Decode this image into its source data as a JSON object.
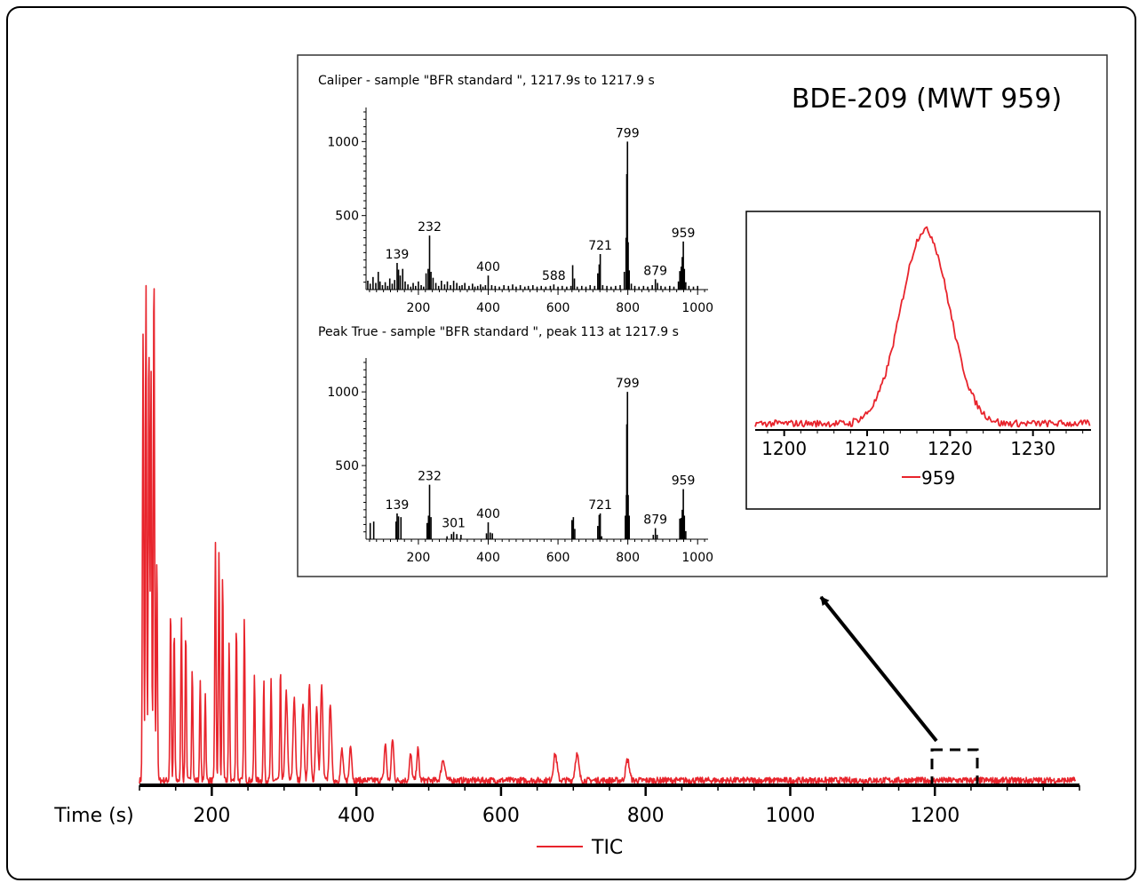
{
  "chart_data": [
    {
      "type": "line",
      "name": "main-tic-chromatogram",
      "xlabel": "Time (s)",
      "x_ticks": [
        200,
        400,
        600,
        800,
        1000,
        1200
      ],
      "xlim": [
        100,
        1400
      ],
      "legend": {
        "entries": [
          "TIC"
        ],
        "placement": "bottom-center"
      },
      "series": [
        {
          "name": "TIC",
          "color": "#e8242c",
          "peaks": [
            {
              "x": 105,
              "y": 0.86
            },
            {
              "x": 109,
              "y": 0.96
            },
            {
              "x": 113,
              "y": 0.86
            },
            {
              "x": 116,
              "y": 0.79
            },
            {
              "x": 120,
              "y": 1.0
            },
            {
              "x": 124,
              "y": 0.43
            },
            {
              "x": 143,
              "y": 0.33
            },
            {
              "x": 148,
              "y": 0.29
            },
            {
              "x": 158,
              "y": 0.31
            },
            {
              "x": 164,
              "y": 0.29
            },
            {
              "x": 173,
              "y": 0.22
            },
            {
              "x": 184,
              "y": 0.19
            },
            {
              "x": 191,
              "y": 0.17
            },
            {
              "x": 205,
              "y": 0.46
            },
            {
              "x": 210,
              "y": 0.44
            },
            {
              "x": 215,
              "y": 0.4
            },
            {
              "x": 224,
              "y": 0.26
            },
            {
              "x": 234,
              "y": 0.3
            },
            {
              "x": 245,
              "y": 0.31
            },
            {
              "x": 259,
              "y": 0.2
            },
            {
              "x": 272,
              "y": 0.19
            },
            {
              "x": 282,
              "y": 0.19
            },
            {
              "x": 295,
              "y": 0.21
            },
            {
              "x": 303,
              "y": 0.17
            },
            {
              "x": 314,
              "y": 0.16
            },
            {
              "x": 326,
              "y": 0.15
            },
            {
              "x": 335,
              "y": 0.18
            },
            {
              "x": 345,
              "y": 0.14
            },
            {
              "x": 352,
              "y": 0.18
            },
            {
              "x": 364,
              "y": 0.15
            },
            {
              "x": 380,
              "y": 0.06
            },
            {
              "x": 392,
              "y": 0.07
            },
            {
              "x": 440,
              "y": 0.07
            },
            {
              "x": 450,
              "y": 0.08
            },
            {
              "x": 475,
              "y": 0.05
            },
            {
              "x": 485,
              "y": 0.06
            },
            {
              "x": 520,
              "y": 0.04
            },
            {
              "x": 675,
              "y": 0.05
            },
            {
              "x": 705,
              "y": 0.05
            },
            {
              "x": 775,
              "y": 0.04
            }
          ]
        }
      ]
    },
    {
      "type": "bar",
      "name": "caliper-spectrum",
      "title": "Caliper - sample \"BFR standard \", 1217.9s to 1217.9 s",
      "xlim": [
        50,
        1030
      ],
      "ylim": [
        0,
        1230
      ],
      "x_ticks": [
        200,
        400,
        600,
        800,
        1000
      ],
      "y_ticks": [
        500,
        1000
      ],
      "peak_labels": [
        139,
        232,
        400,
        588,
        721,
        799,
        879,
        959
      ],
      "bars": [
        [
          55,
          60
        ],
        [
          62,
          40
        ],
        [
          70,
          85
        ],
        [
          78,
          45
        ],
        [
          85,
          120
        ],
        [
          90,
          55
        ],
        [
          97,
          30
        ],
        [
          105,
          50
        ],
        [
          112,
          25
        ],
        [
          118,
          75
        ],
        [
          125,
          40
        ],
        [
          132,
          65
        ],
        [
          139,
          180
        ],
        [
          143,
          135
        ],
        [
          148,
          95
        ],
        [
          155,
          140
        ],
        [
          162,
          55
        ],
        [
          170,
          35
        ],
        [
          178,
          20
        ],
        [
          185,
          45
        ],
        [
          192,
          25
        ],
        [
          200,
          55
        ],
        [
          208,
          30
        ],
        [
          215,
          20
        ],
        [
          222,
          110
        ],
        [
          228,
          140
        ],
        [
          232,
          365
        ],
        [
          236,
          120
        ],
        [
          242,
          80
        ],
        [
          250,
          45
        ],
        [
          258,
          25
        ],
        [
          266,
          60
        ],
        [
          275,
          35
        ],
        [
          283,
          55
        ],
        [
          292,
          30
        ],
        [
          301,
          60
        ],
        [
          310,
          45
        ],
        [
          318,
          25
        ],
        [
          325,
          30
        ],
        [
          333,
          45
        ],
        [
          345,
          25
        ],
        [
          355,
          40
        ],
        [
          362,
          20
        ],
        [
          370,
          25
        ],
        [
          378,
          35
        ],
        [
          385,
          20
        ],
        [
          392,
          30
        ],
        [
          400,
          95
        ],
        [
          410,
          30
        ],
        [
          420,
          25
        ],
        [
          432,
          20
        ],
        [
          445,
          30
        ],
        [
          458,
          25
        ],
        [
          470,
          35
        ],
        [
          480,
          20
        ],
        [
          492,
          30
        ],
        [
          505,
          20
        ],
        [
          515,
          25
        ],
        [
          528,
          30
        ],
        [
          540,
          20
        ],
        [
          552,
          25
        ],
        [
          565,
          20
        ],
        [
          578,
          25
        ],
        [
          588,
          35
        ],
        [
          600,
          20
        ],
        [
          612,
          25
        ],
        [
          625,
          20
        ],
        [
          637,
          25
        ],
        [
          642,
          165
        ],
        [
          647,
          75
        ],
        [
          655,
          20
        ],
        [
          668,
          25
        ],
        [
          680,
          20
        ],
        [
          692,
          30
        ],
        [
          705,
          25
        ],
        [
          714,
          110
        ],
        [
          718,
          170
        ],
        [
          721,
          240
        ],
        [
          728,
          30
        ],
        [
          740,
          25
        ],
        [
          752,
          20
        ],
        [
          765,
          25
        ],
        [
          778,
          30
        ],
        [
          790,
          120
        ],
        [
          795,
          350
        ],
        [
          797,
          780
        ],
        [
          799,
          1000
        ],
        [
          801,
          320
        ],
        [
          804,
          130
        ],
        [
          810,
          40
        ],
        [
          820,
          25
        ],
        [
          832,
          20
        ],
        [
          845,
          25
        ],
        [
          857,
          20
        ],
        [
          870,
          30
        ],
        [
          879,
          70
        ],
        [
          885,
          45
        ],
        [
          895,
          25
        ],
        [
          907,
          20
        ],
        [
          920,
          25
        ],
        [
          932,
          20
        ],
        [
          945,
          55
        ],
        [
          949,
          125
        ],
        [
          953,
          155
        ],
        [
          956,
          220
        ],
        [
          959,
          325
        ],
        [
          962,
          140
        ],
        [
          966,
          50
        ],
        [
          975,
          25
        ],
        [
          988,
          20
        ],
        [
          1000,
          25
        ]
      ]
    },
    {
      "type": "bar",
      "name": "peak-true-spectrum",
      "title": "Peak True - sample \"BFR standard \", peak 113 at 1217.9 s",
      "xlim": [
        50,
        1030
      ],
      "ylim": [
        0,
        1230
      ],
      "x_ticks": [
        200,
        400,
        600,
        800,
        1000
      ],
      "y_ticks": [
        500,
        1000
      ],
      "peak_labels": [
        139,
        232,
        301,
        400,
        721,
        799,
        879,
        959
      ],
      "bars": [
        [
          62,
          110
        ],
        [
          72,
          120
        ],
        [
          136,
          120
        ],
        [
          139,
          175
        ],
        [
          143,
          155
        ],
        [
          150,
          150
        ],
        [
          225,
          110
        ],
        [
          229,
          160
        ],
        [
          232,
          370
        ],
        [
          236,
          150
        ],
        [
          282,
          20
        ],
        [
          295,
          35
        ],
        [
          301,
          50
        ],
        [
          310,
          35
        ],
        [
          322,
          30
        ],
        [
          395,
          40
        ],
        [
          400,
          115
        ],
        [
          406,
          45
        ],
        [
          412,
          40
        ],
        [
          640,
          130
        ],
        [
          644,
          150
        ],
        [
          648,
          70
        ],
        [
          714,
          90
        ],
        [
          718,
          165
        ],
        [
          721,
          175
        ],
        [
          725,
          20
        ],
        [
          793,
          160
        ],
        [
          796,
          300
        ],
        [
          797,
          780
        ],
        [
          799,
          1000
        ],
        [
          801,
          300
        ],
        [
          804,
          160
        ],
        [
          873,
          30
        ],
        [
          879,
          75
        ],
        [
          884,
          30
        ],
        [
          949,
          140
        ],
        [
          953,
          145
        ],
        [
          956,
          200
        ],
        [
          959,
          340
        ],
        [
          962,
          160
        ],
        [
          966,
          55
        ]
      ]
    },
    {
      "type": "line",
      "name": "ion-959-extracted-chromatogram",
      "xlim": [
        1196.5,
        1237
      ],
      "x_ticks": [
        1200,
        1210,
        1220,
        1230
      ],
      "legend": {
        "entries": [
          "959"
        ],
        "placement": "bottom-center"
      },
      "peak": {
        "apex_x": 1217,
        "start_x": 1205,
        "end_x": 1227,
        "height": 1.0
      },
      "series": [
        {
          "name": "959",
          "color": "#e8242c"
        }
      ]
    }
  ],
  "inset": {
    "compound_title": "BDE-209 (MWT 959)"
  }
}
